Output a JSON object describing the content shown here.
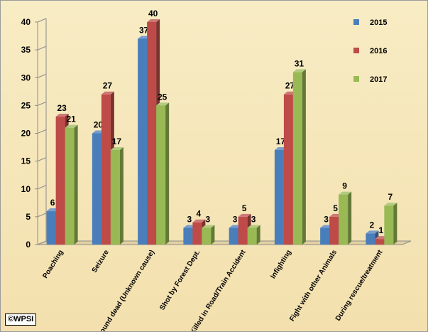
{
  "chart_data": {
    "type": "bar",
    "categories": [
      "Poaching",
      "Seizure",
      "Found dead (Unknown cause)",
      "Shot by Forest Dept.",
      "Killed in Road/Train Accident",
      "Infighting",
      "Fight with other Animals",
      "During rescue/treatment"
    ],
    "series": [
      {
        "name": "2015",
        "values": [
          6,
          20,
          37,
          3,
          3,
          17,
          3,
          2
        ]
      },
      {
        "name": "2016",
        "values": [
          23,
          27,
          40,
          4,
          5,
          27,
          5,
          1
        ]
      },
      {
        "name": "2017",
        "values": [
          21,
          17,
          25,
          3,
          3,
          31,
          9,
          7
        ]
      }
    ],
    "ylim": [
      0,
      40
    ],
    "yticks": [
      "0",
      "5",
      "10",
      "15",
      "20",
      "25",
      "30",
      "35",
      "40"
    ],
    "grid": false,
    "legend_position": "top-right",
    "title": "",
    "xlabel": "",
    "ylabel": "",
    "colors": {
      "2015": "#4a7ebb",
      "2016": "#be4b48",
      "2017": "#98b954"
    }
  },
  "copyright": "©WPSI"
}
